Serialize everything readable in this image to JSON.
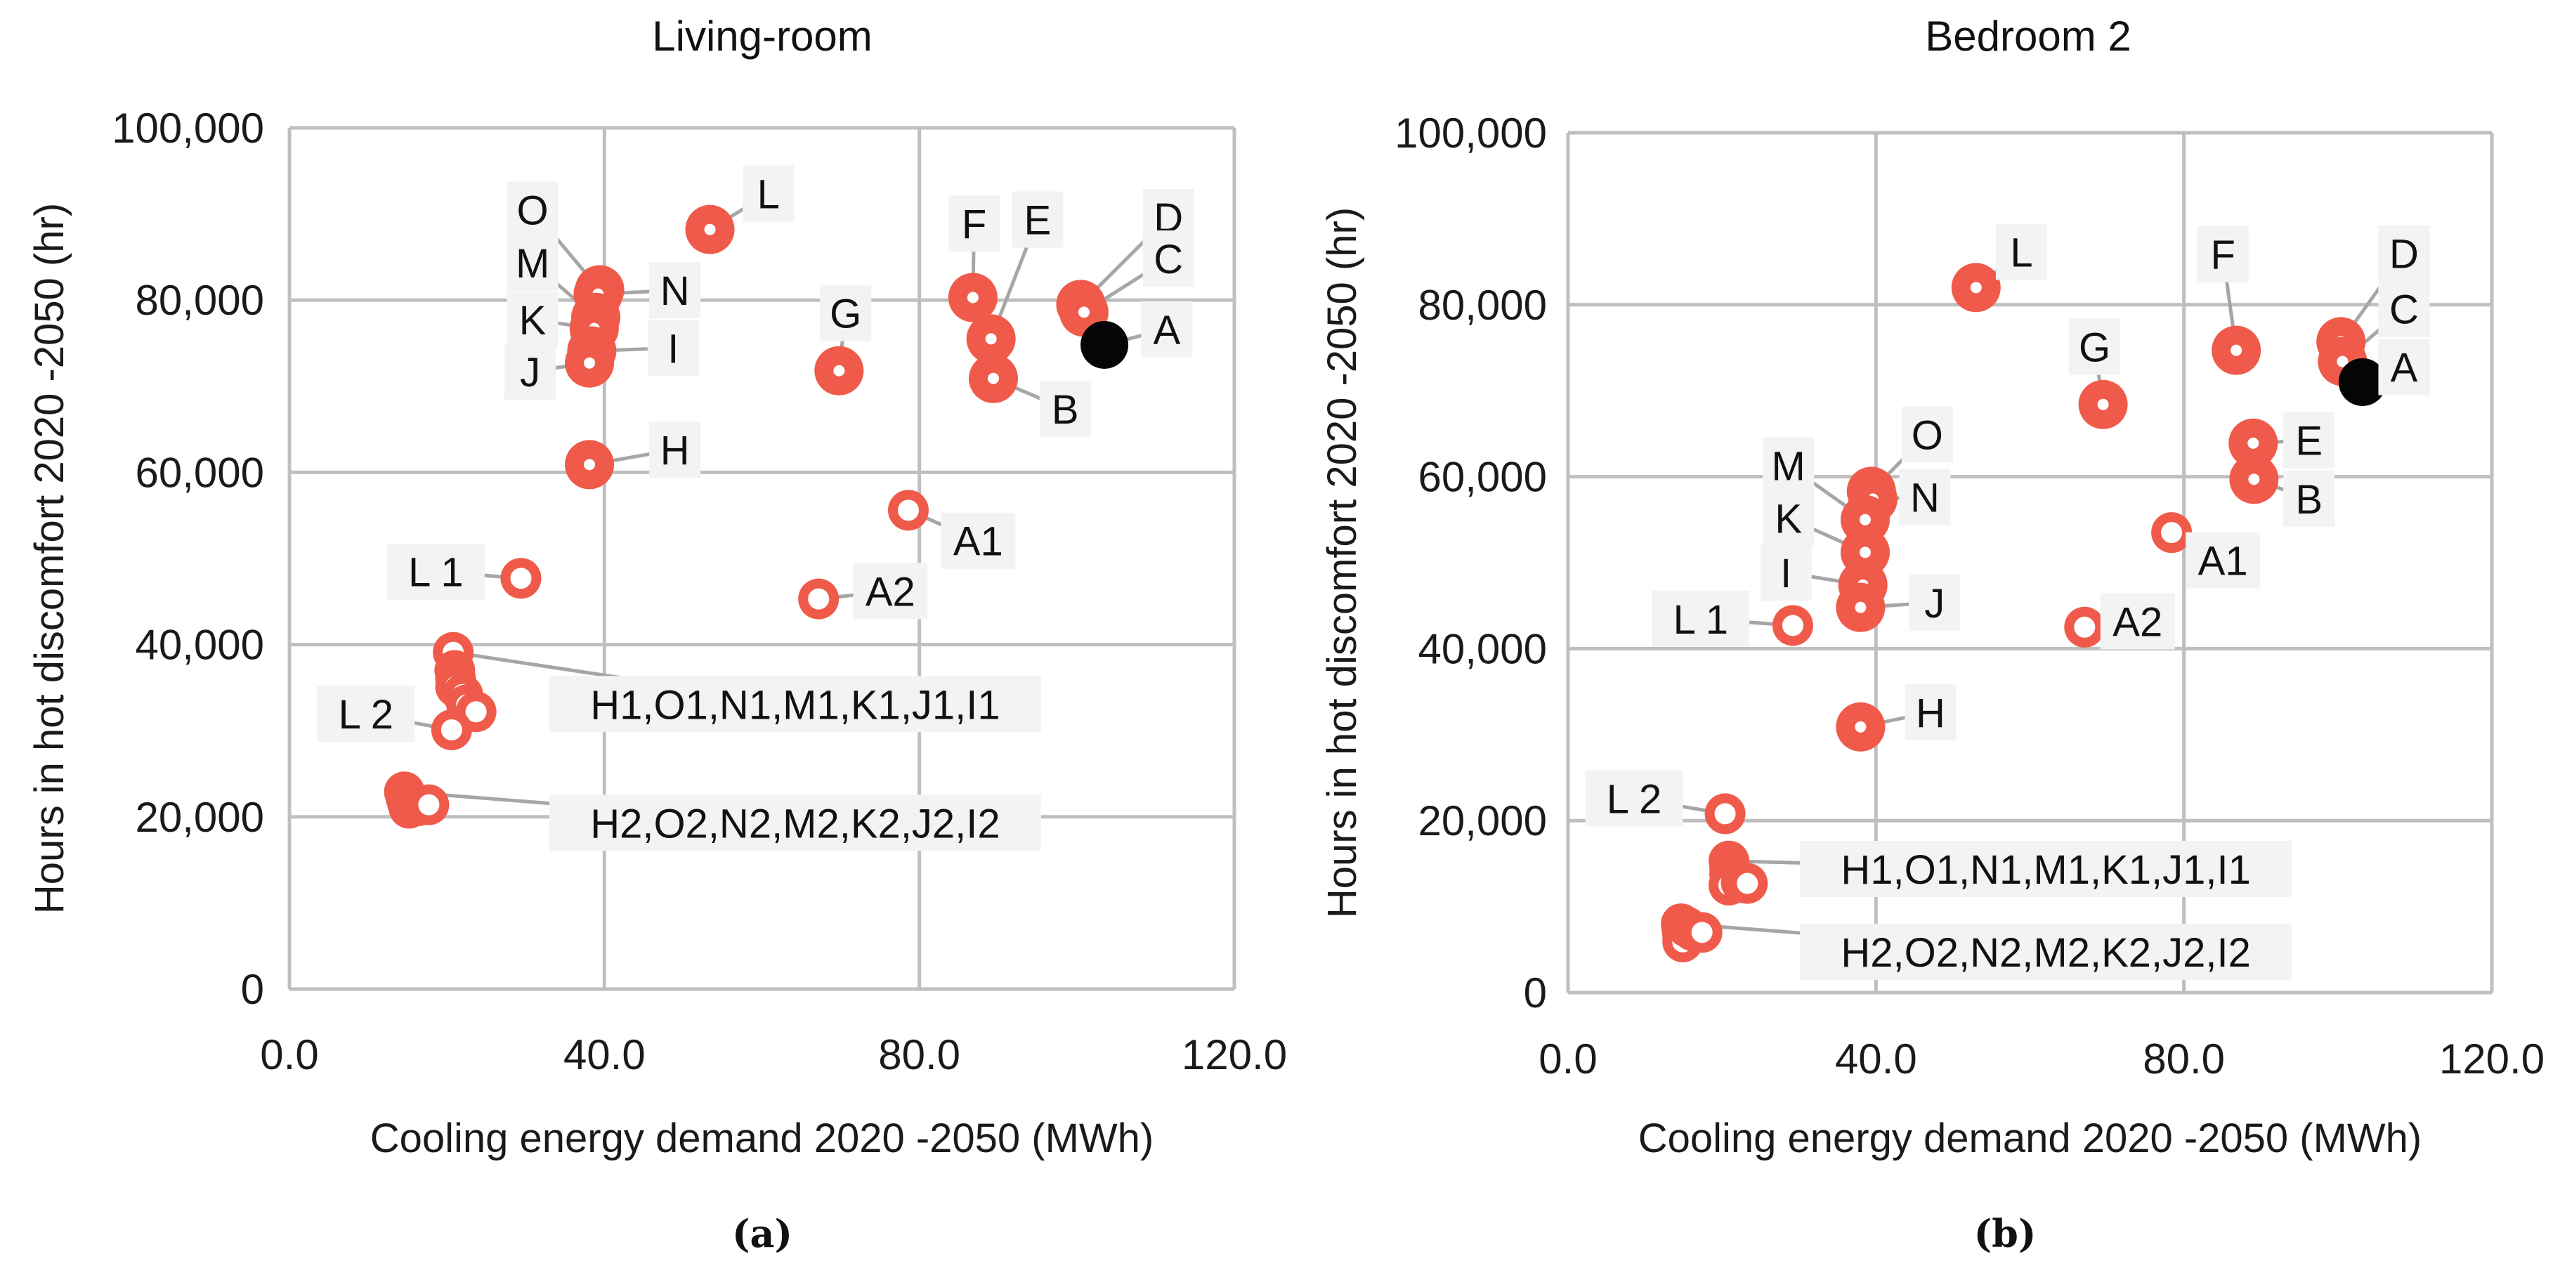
{
  "colors": {
    "marker": "#f05a4a",
    "reference_marker": "#050505",
    "grid": "#bfbfbf",
    "label_box": "#f2f3f5",
    "leader": "#a6a6a6"
  },
  "chart_data": [
    {
      "type": "scatter",
      "title": "Living-room",
      "caption": "(a)",
      "xlabel": "Cooling energy demand 2020 -2050 (MWh)",
      "ylabel": "Hours in hot discomfort 2020 -2050 (hr)",
      "xlim": [
        0,
        120
      ],
      "ylim": [
        0,
        100000
      ],
      "x_ticks": [
        "0.0",
        "40.0",
        "80.0",
        "120.0"
      ],
      "y_ticks": [
        "0",
        "20,000",
        "40,000",
        "60,000",
        "80,000",
        "100,000"
      ],
      "grid": true,
      "points": [
        {
          "label": "L",
          "x": 53.4,
          "y": 88200,
          "marker": "ring-thick"
        },
        {
          "label": "O",
          "x": 39.4,
          "y": 81200,
          "marker": "ring-thick"
        },
        {
          "label": "N",
          "x": 39.2,
          "y": 80700,
          "marker": "ring-thick"
        },
        {
          "label": "M",
          "x": 38.9,
          "y": 78000,
          "marker": "ring-thick"
        },
        {
          "label": "K",
          "x": 38.7,
          "y": 76700,
          "marker": "ring-thick"
        },
        {
          "label": "I",
          "x": 38.4,
          "y": 74100,
          "marker": "ring-thick"
        },
        {
          "label": "J",
          "x": 38.1,
          "y": 72700,
          "marker": "ring-thick"
        },
        {
          "label": "H",
          "x": 38.1,
          "y": 60900,
          "marker": "ring-thick"
        },
        {
          "label": "G",
          "x": 69.8,
          "y": 71800,
          "marker": "ring-thick"
        },
        {
          "label": "F",
          "x": 86.8,
          "y": 80300,
          "marker": "ring-thick"
        },
        {
          "label": "E",
          "x": 89.1,
          "y": 75500,
          "marker": "ring-thick"
        },
        {
          "label": "B",
          "x": 89.4,
          "y": 70900,
          "marker": "ring-thick"
        },
        {
          "label": "D",
          "x": 100.5,
          "y": 79500,
          "marker": "ring-thick"
        },
        {
          "label": "C",
          "x": 100.9,
          "y": 78600,
          "marker": "ring-thick"
        },
        {
          "label": "A",
          "x": 103.5,
          "y": 74800,
          "marker": "filled-black"
        },
        {
          "label": "A1",
          "x": 78.6,
          "y": 55600,
          "marker": "ring-thin"
        },
        {
          "label": "A2",
          "x": 67.2,
          "y": 45300,
          "marker": "ring-thin"
        },
        {
          "label": "L 1",
          "x": 29.4,
          "y": 47700,
          "marker": "ring-thin"
        },
        {
          "label": "L 2",
          "x": 20.6,
          "y": 30100,
          "marker": "ring-thin"
        }
      ],
      "groups": [
        {
          "label": "H1,O1,N1,M1,K1,J1,I1",
          "marker": "ring-thin",
          "points": [
            {
              "x": 20.8,
              "y": 39100
            },
            {
              "x": 21.0,
              "y": 37000
            },
            {
              "x": 21.1,
              "y": 36000
            },
            {
              "x": 21.1,
              "y": 35100
            },
            {
              "x": 22.0,
              "y": 34200
            },
            {
              "x": 22.5,
              "y": 33000
            },
            {
              "x": 23.7,
              "y": 32200
            }
          ]
        },
        {
          "label": "H2,O2,N2,M2,K2,J2,I2",
          "marker": "ring-thin",
          "points": [
            {
              "x": 14.6,
              "y": 22900
            },
            {
              "x": 14.8,
              "y": 22200
            },
            {
              "x": 15.0,
              "y": 21600
            },
            {
              "x": 15.2,
              "y": 21000
            },
            {
              "x": 15.5,
              "y": 21800
            },
            {
              "x": 16.5,
              "y": 21300
            },
            {
              "x": 17.7,
              "y": 21400
            }
          ]
        }
      ]
    },
    {
      "type": "scatter",
      "title": "Bedroom 2",
      "caption": "(b)",
      "xlabel": "Cooling energy demand 2020 -2050 (MWh)",
      "ylabel": "Hours in hot discomfort 2020 -2050 (hr)",
      "xlim": [
        0,
        120
      ],
      "ylim": [
        0,
        100000
      ],
      "x_ticks": [
        "0.0",
        "40.0",
        "80.0",
        "120.0"
      ],
      "y_ticks": [
        "0",
        "20,000",
        "40,000",
        "60,000",
        "80,000",
        "100,000"
      ],
      "grid": true,
      "points": [
        {
          "label": "L",
          "x": 53.0,
          "y": 82000,
          "marker": "ring-thick"
        },
        {
          "label": "F",
          "x": 86.8,
          "y": 74700,
          "marker": "ring-thick"
        },
        {
          "label": "G",
          "x": 69.5,
          "y": 68400,
          "marker": "ring-thick"
        },
        {
          "label": "D",
          "x": 100.4,
          "y": 75700,
          "marker": "ring-thick"
        },
        {
          "label": "C",
          "x": 100.6,
          "y": 73400,
          "marker": "ring-thick"
        },
        {
          "label": "A",
          "x": 103.2,
          "y": 71000,
          "marker": "filled-black"
        },
        {
          "label": "E",
          "x": 89.0,
          "y": 63900,
          "marker": "ring-thick"
        },
        {
          "label": "B",
          "x": 89.1,
          "y": 59700,
          "marker": "ring-thick"
        },
        {
          "label": "O",
          "x": 39.4,
          "y": 58300,
          "marker": "ring-thick"
        },
        {
          "label": "N",
          "x": 39.6,
          "y": 57400,
          "marker": "ring-thick"
        },
        {
          "label": "M",
          "x": 38.6,
          "y": 55000,
          "marker": "ring-thick"
        },
        {
          "label": "K",
          "x": 38.6,
          "y": 51200,
          "marker": "ring-thick"
        },
        {
          "label": "I",
          "x": 38.3,
          "y": 47400,
          "marker": "ring-thick"
        },
        {
          "label": "J",
          "x": 38.0,
          "y": 44800,
          "marker": "ring-thick"
        },
        {
          "label": "H",
          "x": 38.0,
          "y": 30900,
          "marker": "ring-thick"
        },
        {
          "label": "A1",
          "x": 78.4,
          "y": 53500,
          "marker": "ring-thin"
        },
        {
          "label": "A2",
          "x": 67.1,
          "y": 42500,
          "marker": "ring-thin"
        },
        {
          "label": "L 1",
          "x": 29.2,
          "y": 42700,
          "marker": "ring-thin"
        },
        {
          "label": "L 2",
          "x": 20.4,
          "y": 20800,
          "marker": "ring-thin"
        }
      ],
      "groups": [
        {
          "label": "H1,O1,N1,M1,K1,J1,I1",
          "marker": "ring-thin",
          "points": [
            {
              "x": 20.9,
              "y": 15300
            },
            {
              "x": 21.0,
              "y": 14500
            },
            {
              "x": 21.0,
              "y": 13800
            },
            {
              "x": 21.1,
              "y": 13000
            },
            {
              "x": 20.9,
              "y": 12500
            },
            {
              "x": 22.5,
              "y": 12800
            },
            {
              "x": 23.3,
              "y": 12700
            }
          ]
        },
        {
          "label": "H2,O2,N2,M2,K2,J2,I2",
          "marker": "ring-thin",
          "points": [
            {
              "x": 14.7,
              "y": 8000
            },
            {
              "x": 14.8,
              "y": 7300
            },
            {
              "x": 14.9,
              "y": 6600
            },
            {
              "x": 14.9,
              "y": 5900
            },
            {
              "x": 15.5,
              "y": 7600
            },
            {
              "x": 16.2,
              "y": 7200
            },
            {
              "x": 17.4,
              "y": 7000
            }
          ]
        }
      ]
    }
  ]
}
